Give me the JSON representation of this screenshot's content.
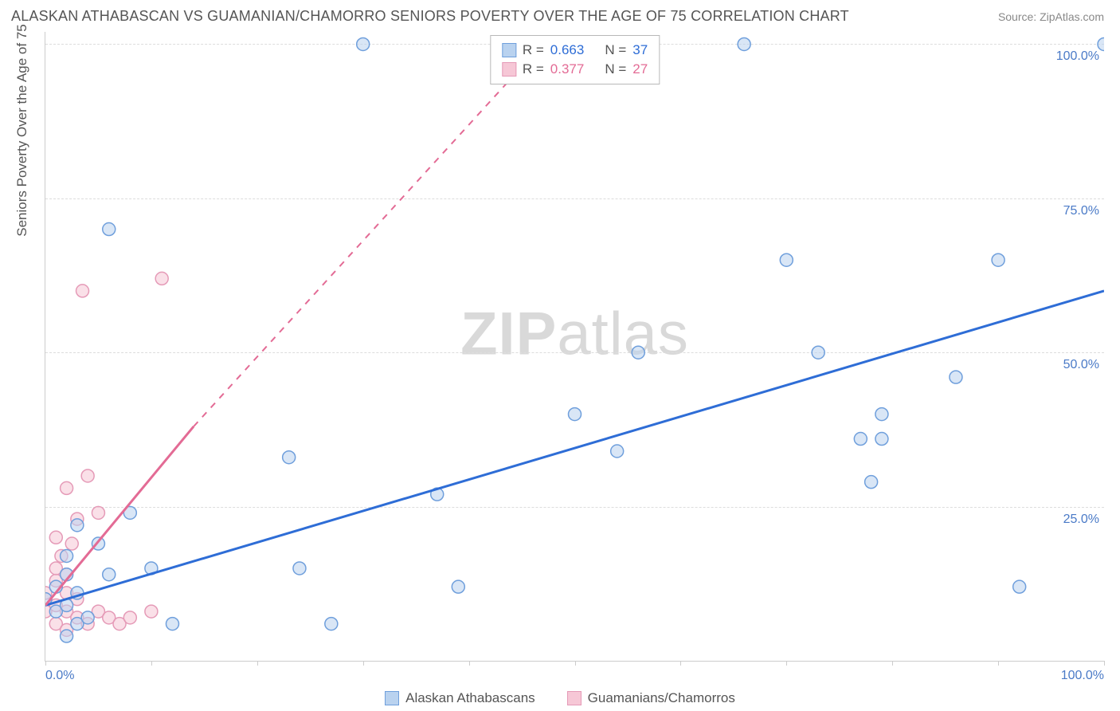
{
  "header": {
    "title": "ALASKAN ATHABASCAN VS GUAMANIAN/CHAMORRO SENIORS POVERTY OVER THE AGE OF 75 CORRELATION CHART",
    "source": "Source: ZipAtlas.com"
  },
  "chart": {
    "type": "scatter",
    "ylabel": "Seniors Poverty Over the Age of 75",
    "watermark_a": "ZIP",
    "watermark_b": "atlas",
    "background_color": "#ffffff",
    "grid_color": "#dddddd",
    "axis_color": "#cccccc",
    "tick_label_color": "#4a7ac7",
    "text_color": "#555555",
    "xlim": [
      0,
      100
    ],
    "ylim": [
      0,
      102
    ],
    "xticks": [
      0,
      10,
      20,
      30,
      40,
      50,
      60,
      70,
      80,
      90,
      100
    ],
    "xtick_labels": {
      "0": "0.0%",
      "100": "100.0%"
    },
    "yticks": [
      25,
      50,
      75,
      100
    ],
    "ytick_labels": {
      "25": "25.0%",
      "50": "50.0%",
      "75": "75.0%",
      "100": "100.0%"
    },
    "marker_radius": 8,
    "marker_opacity": 0.55,
    "line_width_solid": 3,
    "line_width_dashed": 2,
    "series": {
      "blue": {
        "name": "Alaskan Athabascans",
        "fill": "#b9d2ef",
        "stroke": "#6f9fdc",
        "line_color": "#2e6dd6",
        "R": "0.663",
        "N": "37",
        "trend_solid": {
          "x1": 0,
          "y1": 9,
          "x2": 100,
          "y2": 60
        },
        "points": [
          [
            0,
            10
          ],
          [
            1,
            8
          ],
          [
            1,
            12
          ],
          [
            2,
            4
          ],
          [
            2,
            9
          ],
          [
            2,
            14
          ],
          [
            3,
            6
          ],
          [
            3,
            11
          ],
          [
            3,
            22
          ],
          [
            4,
            7
          ],
          [
            5,
            19
          ],
          [
            6,
            14
          ],
          [
            6,
            70
          ],
          [
            8,
            24
          ],
          [
            10,
            15
          ],
          [
            12,
            6
          ],
          [
            23,
            33
          ],
          [
            24,
            15
          ],
          [
            27,
            6
          ],
          [
            30,
            100
          ],
          [
            37,
            27
          ],
          [
            39,
            12
          ],
          [
            50,
            40
          ],
          [
            54,
            34
          ],
          [
            56,
            50
          ],
          [
            66,
            100
          ],
          [
            70,
            65
          ],
          [
            73,
            50
          ],
          [
            77,
            36
          ],
          [
            78,
            29
          ],
          [
            79,
            36
          ],
          [
            79,
            40
          ],
          [
            86,
            46
          ],
          [
            90,
            65
          ],
          [
            92,
            12
          ],
          [
            100,
            100
          ],
          [
            2,
            17
          ]
        ]
      },
      "pink": {
        "name": "Guamanians/Chamorros",
        "fill": "#f6c7d6",
        "stroke": "#e59ab7",
        "line_color": "#e36b95",
        "R": "0.377",
        "N": "27",
        "trend_solid": {
          "x1": 0,
          "y1": 9,
          "x2": 14,
          "y2": 38
        },
        "trend_dashed": {
          "x1": 14,
          "y1": 38,
          "x2": 48,
          "y2": 102
        },
        "points": [
          [
            0,
            8
          ],
          [
            0,
            11
          ],
          [
            1,
            6
          ],
          [
            1,
            9
          ],
          [
            1,
            13
          ],
          [
            1,
            15
          ],
          [
            1,
            20
          ],
          [
            1.5,
            17
          ],
          [
            2,
            5
          ],
          [
            2,
            8
          ],
          [
            2,
            11
          ],
          [
            2,
            14
          ],
          [
            2.5,
            19
          ],
          [
            3,
            7
          ],
          [
            3,
            10
          ],
          [
            3,
            23
          ],
          [
            3.5,
            60
          ],
          [
            4,
            6
          ],
          [
            4,
            30
          ],
          [
            5,
            8
          ],
          [
            5,
            24
          ],
          [
            6,
            7
          ],
          [
            7,
            6
          ],
          [
            8,
            7
          ],
          [
            10,
            8
          ],
          [
            11,
            62
          ],
          [
            2,
            28
          ]
        ]
      }
    },
    "legend_top": {
      "rows": [
        {
          "swatch": "blue",
          "r_label": "R =",
          "r_val": "0.663",
          "n_label": "N =",
          "n_val": "37"
        },
        {
          "swatch": "pink",
          "r_label": "R =",
          "r_val": "0.377",
          "n_label": "N =",
          "n_val": "27"
        }
      ]
    }
  }
}
